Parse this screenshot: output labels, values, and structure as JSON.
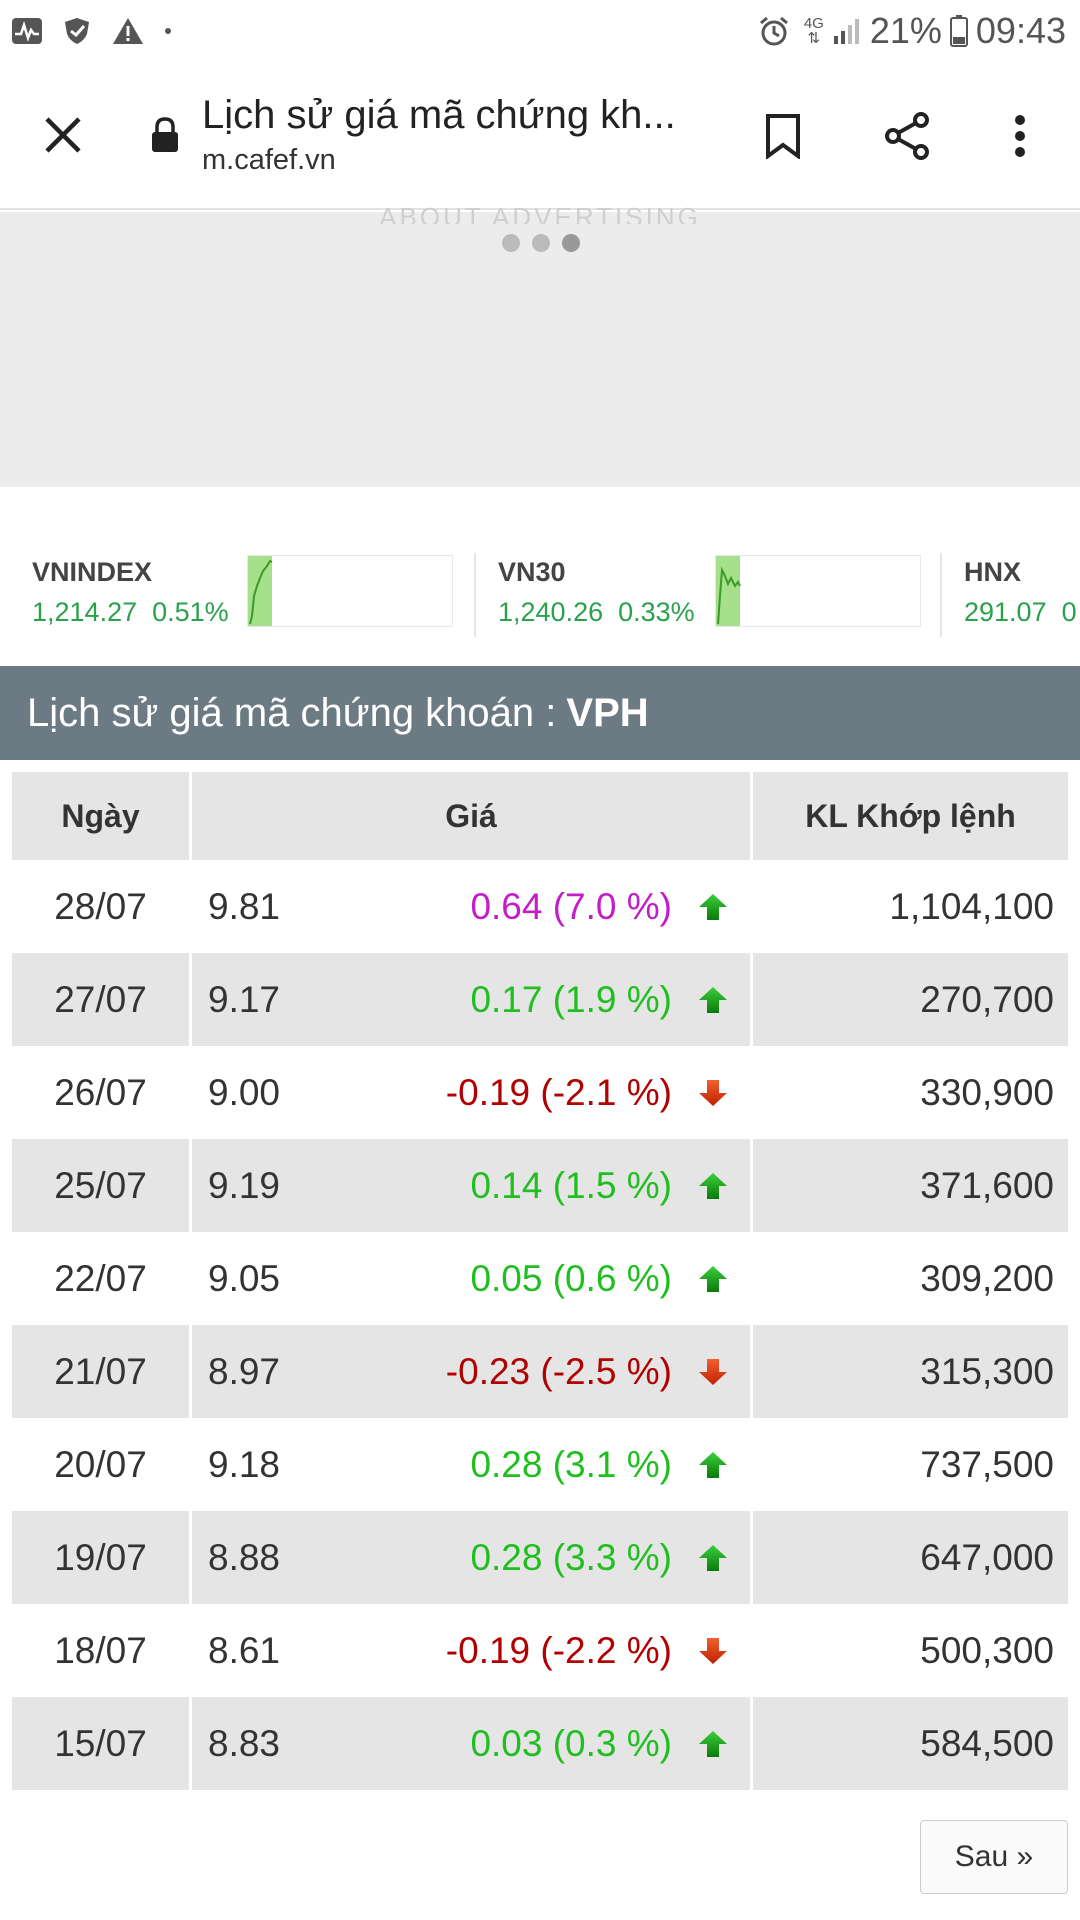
{
  "status_bar": {
    "battery_percent": "21%",
    "time": "09:43",
    "network": "4G",
    "icons": [
      "activity-icon",
      "shield-icon",
      "warning-icon",
      "dot-icon",
      "alarm-icon",
      "network-4g-icon",
      "signal-icon",
      "battery-icon"
    ]
  },
  "toolbar": {
    "title": "Lịch sử giá mã chứng kh...",
    "url": "m.cafef.vn",
    "icons": [
      "close-icon",
      "lock-icon",
      "bookmark-icon",
      "share-icon",
      "more-vert-icon"
    ]
  },
  "ad": {
    "label": "ABOUT ADVERTISING",
    "dots": 3,
    "active_dot": 2
  },
  "tickers": [
    {
      "name": "VNINDEX",
      "value": "1,214.27",
      "change": "0.51%"
    },
    {
      "name": "VN30",
      "value": "1,240.26",
      "change": "0.33%"
    },
    {
      "name": "HNX",
      "value": "291.07",
      "change": "0"
    }
  ],
  "section": {
    "title": "Lịch sử giá mã chứng khoán :",
    "symbol": "VPH"
  },
  "table": {
    "headers": {
      "date": "Ngày",
      "price": "Giá",
      "volume": "KL Khớp lệnh"
    },
    "rows": [
      {
        "date": "28/07",
        "price": "9.81",
        "change": "0.64 (7.0 %)",
        "direction": "ceiling",
        "volume": "1,104,100"
      },
      {
        "date": "27/07",
        "price": "9.17",
        "change": "0.17 (1.9 %)",
        "direction": "up",
        "volume": "270,700"
      },
      {
        "date": "26/07",
        "price": "9.00",
        "change": "-0.19 (-2.1 %)",
        "direction": "down",
        "volume": "330,900"
      },
      {
        "date": "25/07",
        "price": "9.19",
        "change": "0.14 (1.5 %)",
        "direction": "up",
        "volume": "371,600"
      },
      {
        "date": "22/07",
        "price": "9.05",
        "change": "0.05 (0.6 %)",
        "direction": "up",
        "volume": "309,200"
      },
      {
        "date": "21/07",
        "price": "8.97",
        "change": "-0.23 (-2.5 %)",
        "direction": "down",
        "volume": "315,300"
      },
      {
        "date": "20/07",
        "price": "9.18",
        "change": "0.28 (3.1 %)",
        "direction": "up",
        "volume": "737,500"
      },
      {
        "date": "19/07",
        "price": "8.88",
        "change": "0.28 (3.3 %)",
        "direction": "up",
        "volume": "647,000"
      },
      {
        "date": "18/07",
        "price": "8.61",
        "change": "-0.19 (-2.2 %)",
        "direction": "down",
        "volume": "500,300"
      },
      {
        "date": "15/07",
        "price": "8.83",
        "change": "0.03 (0.3 %)",
        "direction": "up",
        "volume": "584,500"
      }
    ]
  },
  "pager": {
    "next_label": "Sau »"
  },
  "colors": {
    "up": "#1fbf1f",
    "down": "#b00000",
    "ceiling": "#c41cc9",
    "ticker_green": "#2aa14a",
    "section_bg": "#6c7a84",
    "row_alt": "#e5e5e5"
  }
}
